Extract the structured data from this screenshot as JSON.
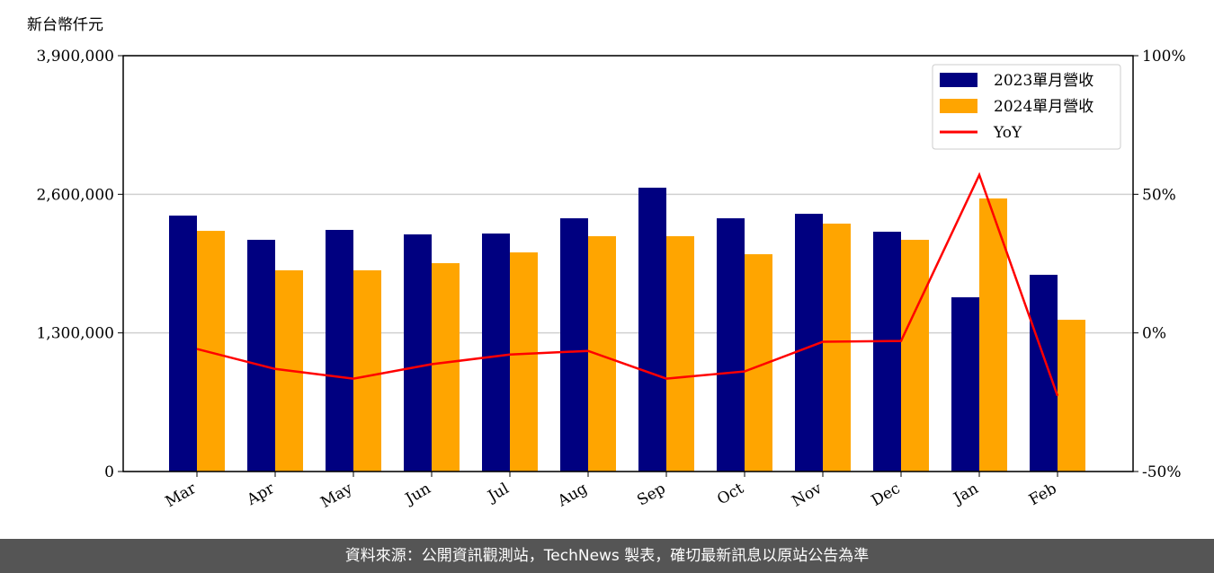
{
  "chart_data": {
    "type": "bar-line",
    "y_label": "新台幣仟元",
    "categories": [
      "Mar",
      "Apr",
      "May",
      "Jun",
      "Jul",
      "Aug",
      "Sep",
      "Oct",
      "Nov",
      "Dec",
      "Jan",
      "Feb"
    ],
    "series": [
      {
        "name": "2023單月營收",
        "color": "#000080",
        "values": [
          2400000,
          2173000,
          2266000,
          2224000,
          2232000,
          2375000,
          2662000,
          2375000,
          2417000,
          2249000,
          1634000,
          1845000
        ]
      },
      {
        "name": "2024單月營收",
        "color": "#ffa500",
        "values": [
          2257000,
          1887000,
          1887000,
          1954000,
          2055000,
          2207000,
          2207000,
          2038000,
          2325000,
          2173000,
          2561000,
          1423000
        ]
      },
      {
        "name": "YoY",
        "color": "#ff0000",
        "axis": "y2",
        "values": [
          -5.8,
          -13.0,
          -16.5,
          -11.3,
          -7.8,
          -6.5,
          -16.5,
          -13.9,
          -3.2,
          -2.9,
          57.0,
          -22.7
        ]
      }
    ],
    "ylim": [
      0,
      3900000
    ],
    "yticks": [
      0,
      {
        "value": 1300000,
        "label": "1,300,000"
      },
      {
        "value": 2600000,
        "label": "2,600,000"
      },
      {
        "value": 3900000,
        "label": "3,900,000"
      }
    ],
    "y2lim": [
      -50,
      100
    ],
    "y2ticks": [
      {
        "value": -50,
        "label": "-50%"
      },
      {
        "value": 0,
        "label": "0%"
      },
      {
        "value": 50,
        "label": "50%"
      },
      {
        "value": 100,
        "label": "100%"
      }
    ],
    "grid": true,
    "legend": "upper right"
  },
  "footer": "資料來源：公開資訊觀測站，TechNews 製表，確切最新訊息以原站公告為準"
}
